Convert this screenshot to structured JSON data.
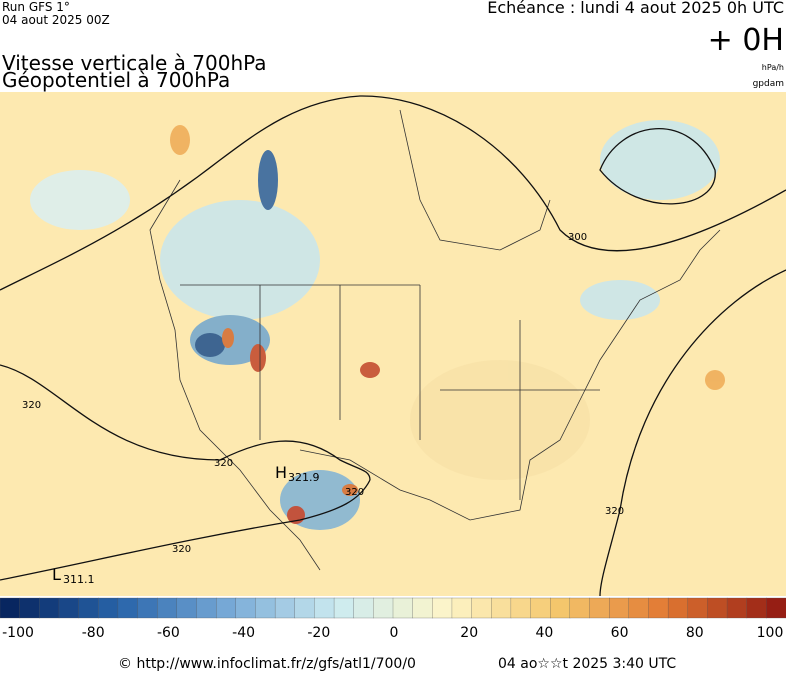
{
  "header": {
    "run": "Run GFS 1°",
    "run_date": "04 aout 2025 00Z",
    "valid": "Echéance : lundi 4 aout 2025 0h UTC",
    "lead": "+ 0H",
    "title1": "Vitesse verticale à 700hPa",
    "title2": "Géopotentiel à 700hPa",
    "unit1": "hPa/h",
    "unit2": "gpdam"
  },
  "map": {
    "contour_labels": [
      "300",
      "320",
      "320",
      "320",
      "320",
      "320"
    ],
    "high": {
      "symbol": "H",
      "value": "321.9"
    },
    "low": {
      "symbol": "L",
      "value": "311.1"
    }
  },
  "colorbar": {
    "ticks": [
      "-100",
      "-80",
      "-60",
      "-40",
      "-20",
      "0",
      "20",
      "40",
      "60",
      "80",
      "100"
    ]
  },
  "footer": {
    "source": "© http://www.infoclimat.fr/z/gfs/atl1/700/0",
    "generated": "04 ao☆☆t 2025  3:40 UTC"
  }
}
